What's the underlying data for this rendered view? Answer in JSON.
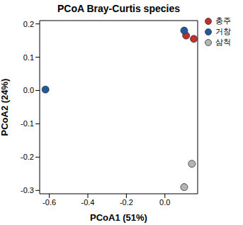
{
  "chart_data": {
    "type": "scatter",
    "title": "PCoA Bray-Curtis species",
    "x_label": "PCoA1 (51%)",
    "y_label": "PCoA2 (24%)",
    "xlim": [
      -0.65,
      0.17
    ],
    "ylim": [
      -0.31,
      0.21
    ],
    "xticks": [
      -0.6,
      -0.4,
      -0.2,
      {
        "value": 0,
        "label": "0.0"
      }
    ],
    "yticks": [
      -0.3,
      -0.2,
      -0.1,
      {
        "value": 0,
        "label": "0.0"
      },
      0.1,
      0.2
    ],
    "grid": false,
    "legend": "top right",
    "marker": "circle",
    "series": [
      {
        "name": "충주",
        "color": "#c0302b",
        "x": [
          0.11,
          0.15
        ],
        "values": [
          0.165,
          0.155
        ]
      },
      {
        "name": "거창",
        "color": "#1f5aa0",
        "x": [
          0.1,
          -0.62
        ],
        "values": [
          0.18,
          0.003
        ]
      },
      {
        "name": "삼척",
        "color": "#b4b4b4",
        "x": [
          0.14,
          0.1
        ],
        "values": [
          -0.22,
          -0.29
        ]
      }
    ]
  }
}
